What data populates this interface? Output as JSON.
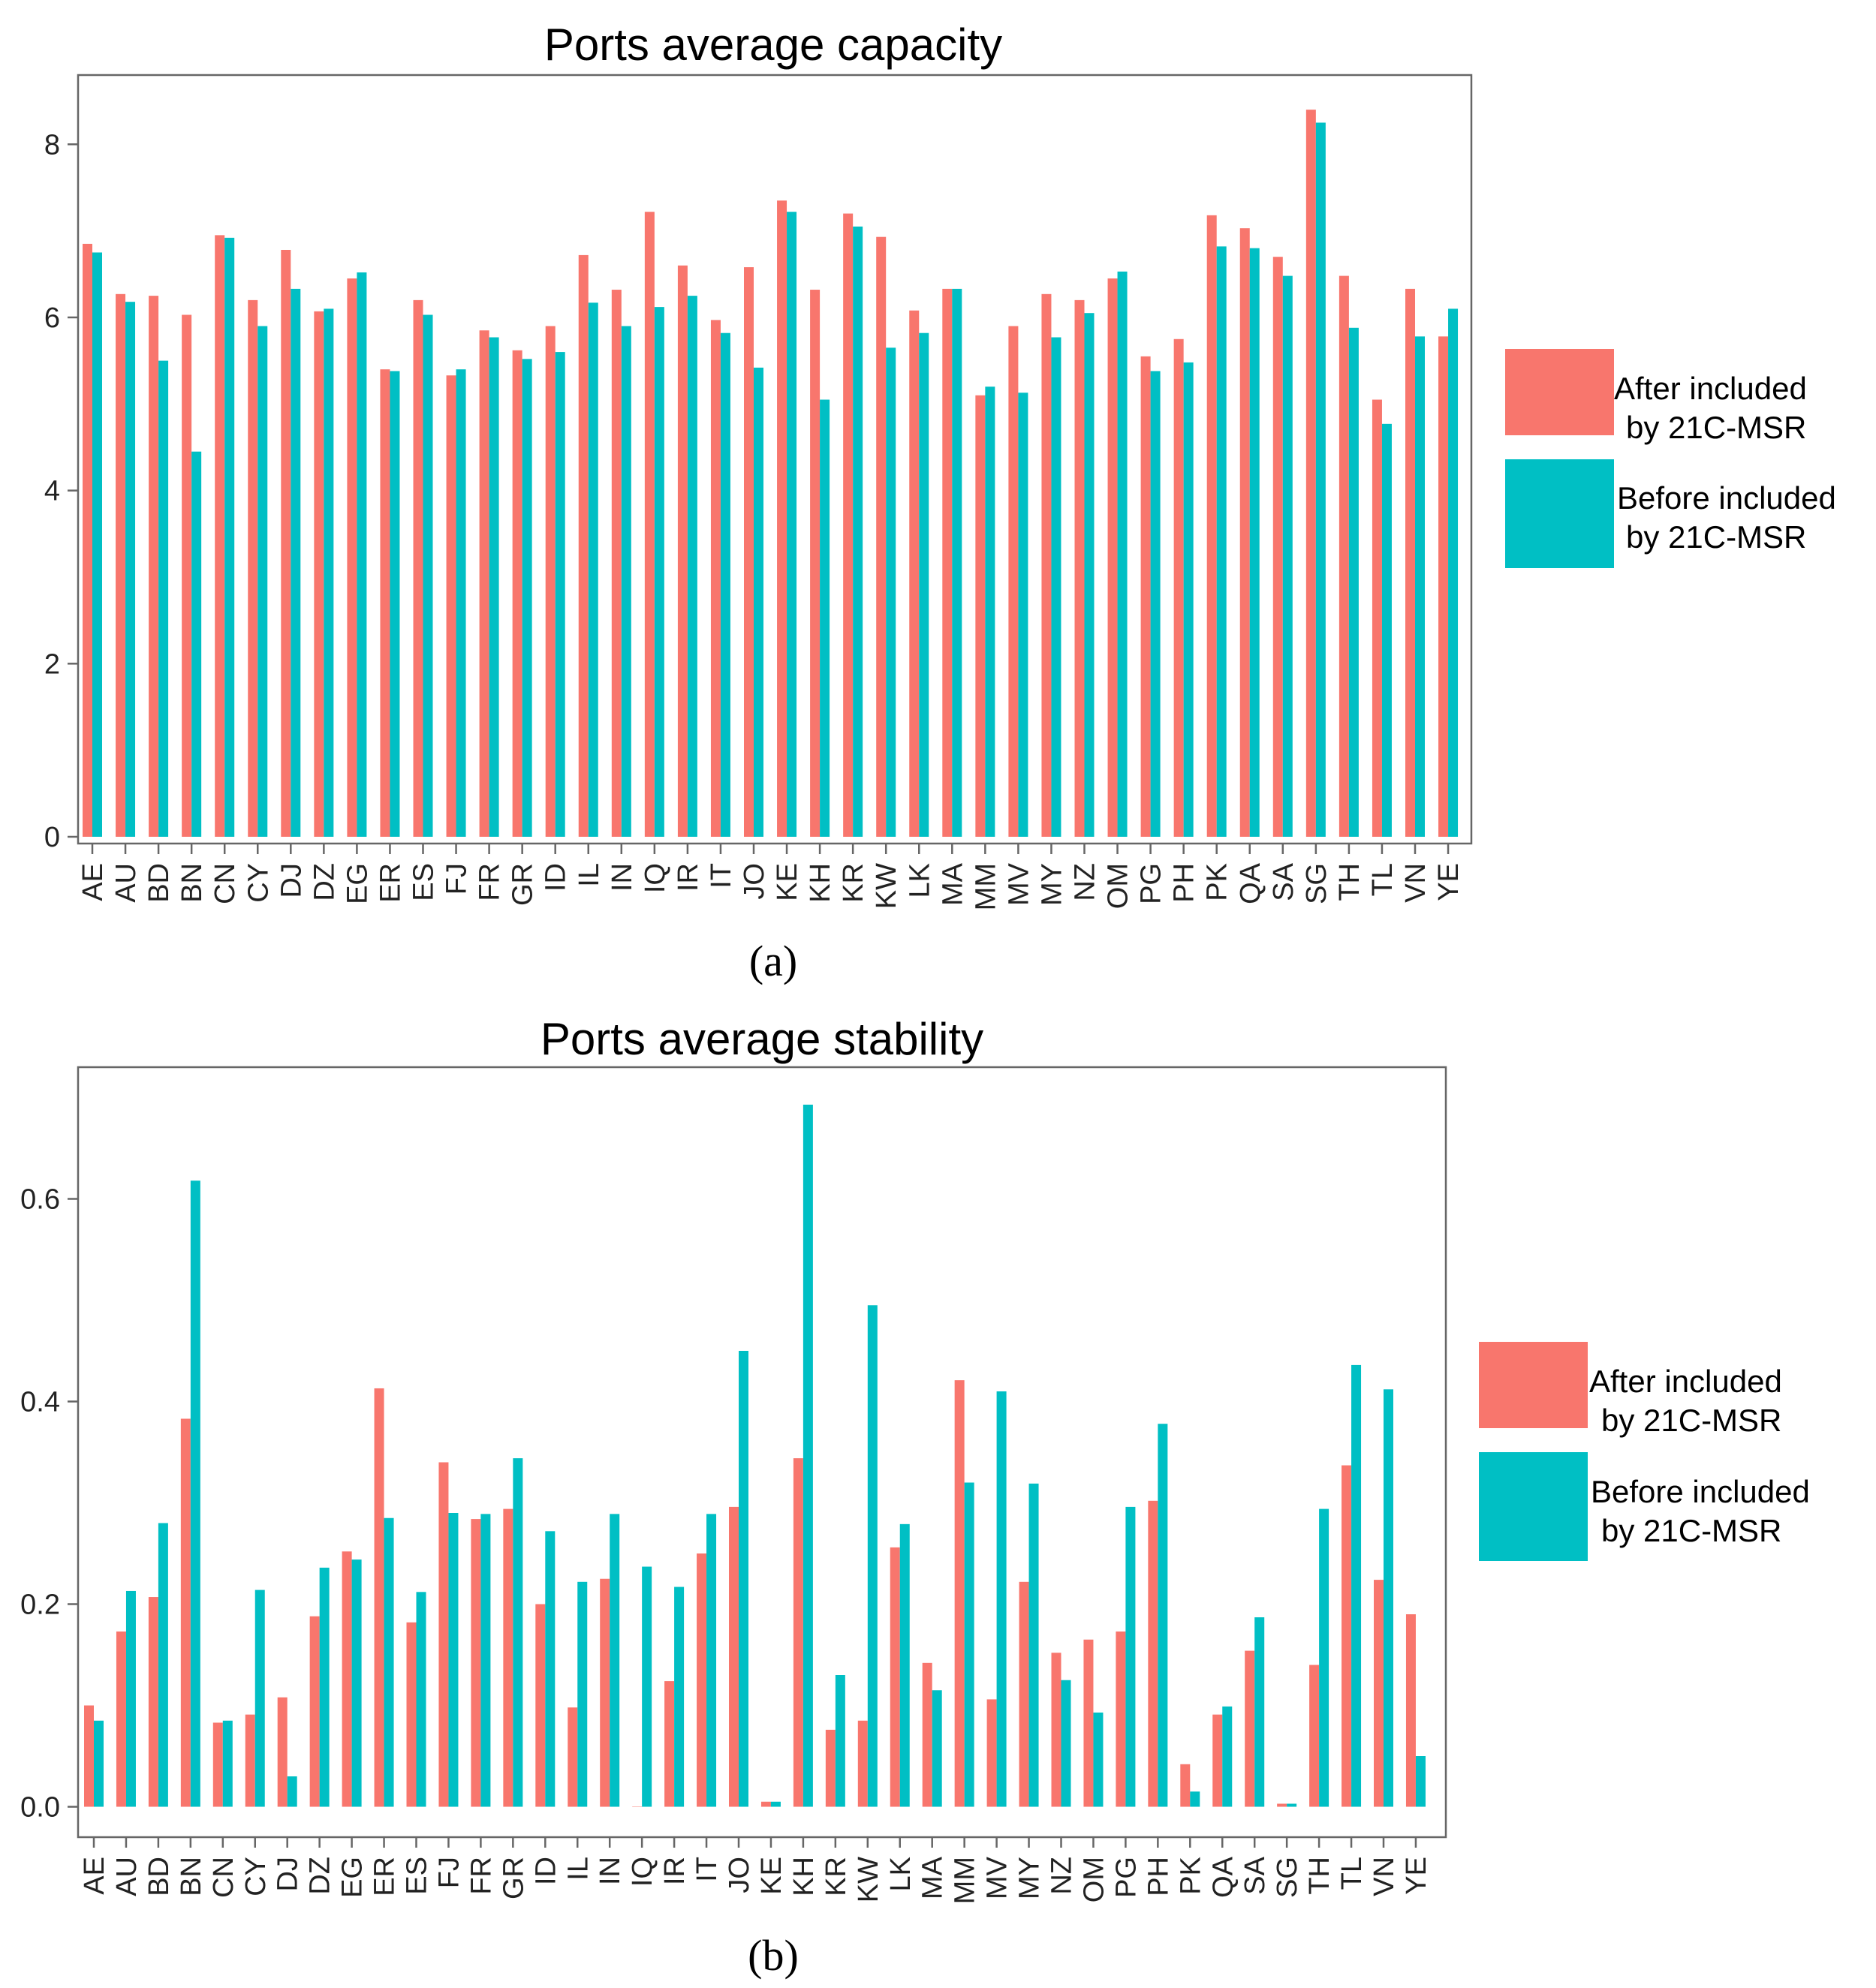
{
  "colors": {
    "after": "#F8766D",
    "before": "#00BFC4",
    "panel_border": "#666666",
    "axis_text": "#222222"
  },
  "legend": {
    "after_line1": "After included",
    "after_line2": "by 21C-MSR",
    "before_line1": "Before included",
    "before_line2": "by 21C-MSR"
  },
  "chart_data": [
    {
      "type": "bar",
      "title": "Ports average capacity",
      "caption": "(a)",
      "xlabel": "",
      "ylabel": "",
      "ylim": [
        0,
        8.8
      ],
      "yticks": [
        "0",
        "2",
        "4",
        "6",
        "8"
      ],
      "ytick_values": [
        0,
        2,
        4,
        6,
        8
      ],
      "categories": [
        "AE",
        "AU",
        "BD",
        "BN",
        "CN",
        "CY",
        "DJ",
        "DZ",
        "EG",
        "ER",
        "ES",
        "FJ",
        "FR",
        "GR",
        "ID",
        "IL",
        "IN",
        "IQ",
        "IR",
        "IT",
        "JO",
        "KE",
        "KH",
        "KR",
        "KW",
        "LK",
        "MA",
        "MM",
        "MV",
        "MY",
        "NZ",
        "OM",
        "PG",
        "PH",
        "PK",
        "QA",
        "SA",
        "SG",
        "TH",
        "TL",
        "VN",
        "YE"
      ],
      "series": [
        {
          "name": "After included by 21C-MSR",
          "values": [
            6.85,
            6.27,
            6.25,
            6.03,
            6.95,
            6.2,
            6.78,
            6.07,
            6.45,
            5.4,
            6.2,
            5.33,
            5.85,
            5.62,
            5.9,
            6.72,
            6.32,
            7.22,
            6.6,
            5.97,
            6.58,
            7.35,
            6.32,
            7.2,
            6.93,
            6.08,
            6.33,
            5.1,
            5.9,
            6.27,
            6.2,
            6.45,
            5.55,
            5.75,
            7.18,
            7.03,
            6.7,
            8.4,
            6.48,
            5.05,
            6.33,
            5.78
          ]
        },
        {
          "name": "Before included by 21C-MSR",
          "values": [
            6.75,
            6.18,
            5.5,
            4.45,
            6.92,
            5.9,
            6.33,
            6.1,
            6.52,
            5.38,
            6.03,
            5.4,
            5.77,
            5.52,
            5.6,
            6.17,
            5.9,
            6.12,
            6.25,
            5.82,
            5.42,
            7.22,
            5.05,
            7.05,
            5.65,
            5.82,
            6.33,
            5.2,
            5.13,
            5.77,
            6.05,
            6.53,
            5.38,
            5.48,
            6.82,
            6.8,
            6.48,
            8.25,
            5.88,
            4.77,
            5.78,
            6.1
          ]
        }
      ]
    },
    {
      "type": "bar",
      "title": "Ports average stability",
      "caption": "(b)",
      "xlabel": "",
      "ylabel": "",
      "ylim": [
        -0.03,
        0.73
      ],
      "yticks": [
        "0.0",
        "0.2",
        "0.4",
        "0.6"
      ],
      "ytick_values": [
        0,
        0.2,
        0.4,
        0.6
      ],
      "categories": [
        "AE",
        "AU",
        "BD",
        "BN",
        "CN",
        "CY",
        "DJ",
        "DZ",
        "EG",
        "ER",
        "ES",
        "FJ",
        "FR",
        "GR",
        "ID",
        "IL",
        "IN",
        "IQ",
        "IR",
        "IT",
        "JO",
        "KE",
        "KH",
        "KR",
        "KW",
        "LK",
        "MA",
        "MM",
        "MV",
        "MY",
        "NZ",
        "OM",
        "PG",
        "PH",
        "PK",
        "QA",
        "SA",
        "SG",
        "TH",
        "TL",
        "VN",
        "YE"
      ],
      "series": [
        {
          "name": "After included by 21C-MSR",
          "values": [
            0.1,
            0.173,
            0.207,
            0.383,
            0.083,
            0.091,
            0.108,
            0.188,
            0.252,
            0.413,
            0.182,
            0.34,
            0.284,
            0.294,
            0.2,
            0.098,
            0.225,
            0.0,
            0.124,
            0.25,
            0.296,
            0.005,
            0.344,
            0.076,
            0.085,
            0.256,
            0.142,
            0.421,
            0.106,
            0.222,
            0.152,
            0.165,
            0.173,
            0.302,
            0.042,
            0.091,
            0.154,
            0.003,
            0.14,
            0.337,
            0.224,
            0.19
          ]
        },
        {
          "name": "Before included by 21C-MSR",
          "values": [
            0.085,
            0.213,
            0.28,
            0.618,
            0.085,
            0.214,
            0.03,
            0.236,
            0.244,
            0.285,
            0.212,
            0.29,
            0.289,
            0.344,
            0.272,
            0.222,
            0.289,
            0.237,
            0.217,
            0.289,
            0.45,
            0.005,
            0.693,
            0.13,
            0.495,
            0.279,
            0.115,
            0.32,
            0.41,
            0.319,
            0.125,
            0.093,
            0.296,
            0.378,
            0.015,
            0.099,
            0.187,
            0.003,
            0.294,
            0.436,
            0.412,
            0.05
          ]
        }
      ]
    }
  ]
}
